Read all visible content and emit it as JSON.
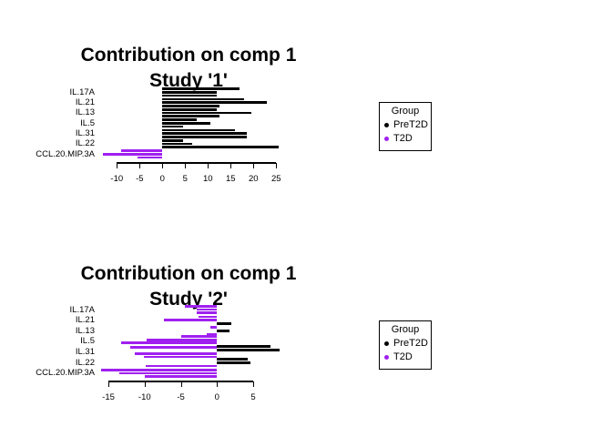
{
  "page": {
    "background": "#ffffff"
  },
  "colors": {
    "PreT2D": "#000000",
    "T2D": "#A020F0"
  },
  "legend": {
    "title": "Group",
    "items": [
      {
        "label": "PreT2D",
        "color": "#000000"
      },
      {
        "label": "T2D",
        "color": "#A020F0"
      }
    ]
  },
  "chart_data": [
    {
      "type": "bar",
      "orientation": "horizontal",
      "title": "Contribution on comp 1",
      "subtitle": "Study '1'",
      "xlabel": "",
      "ylabel": "",
      "grid": false,
      "legend_position": "right",
      "categories": [
        "IL.17A",
        "IL.21",
        "IL.13",
        "IL.5",
        "IL.31",
        "IL.22",
        "CCL.20.MIP.3A"
      ],
      "xticks": [
        -10,
        -5,
        0,
        5,
        10,
        15,
        20,
        25
      ],
      "xlim": [
        -13.5,
        25.8
      ],
      "features": [
        {
          "name": "IL.17A",
          "bars": [
            {
              "group": "PreT2D",
              "value": 17
            },
            {
              "group": "PreT2D",
              "value": 12
            },
            {
              "group": "PreT2D",
              "value": 12
            }
          ]
        },
        {
          "name": "IL.21",
          "bars": [
            {
              "group": "PreT2D",
              "value": 18
            },
            {
              "group": "PreT2D",
              "value": 23
            },
            {
              "group": "PreT2D",
              "value": 12.5
            }
          ]
        },
        {
          "name": "IL.13",
          "bars": [
            {
              "group": "PreT2D",
              "value": 12
            },
            {
              "group": "PreT2D",
              "value": 19.5
            },
            {
              "group": "PreT2D",
              "value": 12.5
            }
          ]
        },
        {
          "name": "IL.5",
          "bars": [
            {
              "group": "PreT2D",
              "value": 7.5
            },
            {
              "group": "PreT2D",
              "value": 10.5
            },
            {
              "group": "PreT2D",
              "value": 4.5
            }
          ]
        },
        {
          "name": "IL.31",
          "bars": [
            {
              "group": "PreT2D",
              "value": 16
            },
            {
              "group": "PreT2D",
              "value": 18.5
            },
            {
              "group": "PreT2D",
              "value": 18.5
            }
          ]
        },
        {
          "name": "IL.22",
          "bars": [
            {
              "group": "PreT2D",
              "value": 4.5
            },
            {
              "group": "PreT2D",
              "value": 6.5
            },
            {
              "group": "PreT2D",
              "value": 25.5
            }
          ]
        },
        {
          "name": "CCL.20.MIP.3A",
          "bars": [
            {
              "group": "T2D",
              "value": -9
            },
            {
              "group": "T2D",
              "value": -13
            },
            {
              "group": "T2D",
              "value": -5.5
            }
          ]
        }
      ]
    },
    {
      "type": "bar",
      "orientation": "horizontal",
      "title": "Contribution on comp 1",
      "subtitle": "Study '2'",
      "xlabel": "",
      "ylabel": "",
      "grid": false,
      "legend_position": "right",
      "categories": [
        "IL.17A",
        "IL.21",
        "IL.13",
        "IL.5",
        "IL.31",
        "IL.22",
        "CCL.20.MIP.3A"
      ],
      "xticks": [
        -15,
        -10,
        -5,
        0,
        5
      ],
      "xlim": [
        -16.5,
        9
      ],
      "features": [
        {
          "name": "IL.17A",
          "bars": [
            {
              "group": "T2D",
              "value": -4.5
            },
            {
              "group": "T2D",
              "value": -2.8
            },
            {
              "group": "T2D",
              "value": -2.8
            }
          ]
        },
        {
          "name": "IL.21",
          "bars": [
            {
              "group": "T2D",
              "value": -2.6
            },
            {
              "group": "T2D",
              "value": -7.3
            },
            {
              "group": "PreT2D",
              "value": 2
            }
          ]
        },
        {
          "name": "IL.13",
          "bars": [
            {
              "group": "T2D",
              "value": -0.9
            },
            {
              "group": "PreT2D",
              "value": 1.7
            },
            {
              "group": "T2D",
              "value": -1.4
            }
          ]
        },
        {
          "name": "IL.5",
          "bars": [
            {
              "group": "T2D",
              "value": -5
            },
            {
              "group": "T2D",
              "value": -9.7
            },
            {
              "group": "T2D",
              "value": -13.3
            },
            {
              "group": "PreT2D",
              "value": 7.4
            }
          ]
        },
        {
          "name": "IL.31",
          "bars": [
            {
              "group": "T2D",
              "value": -12
            },
            {
              "group": "PreT2D",
              "value": 8.7
            },
            {
              "group": "T2D",
              "value": -11.4
            },
            {
              "group": "T2D",
              "value": -10.1
            }
          ]
        },
        {
          "name": "IL.22",
          "bars": [
            {
              "group": "PreT2D",
              "value": 4.2
            },
            {
              "group": "PreT2D",
              "value": 4.6
            },
            {
              "group": "T2D",
              "value": -9.9
            }
          ]
        },
        {
          "name": "CCL.20.MIP.3A",
          "bars": [
            {
              "group": "T2D",
              "value": -16
            },
            {
              "group": "T2D",
              "value": -13.5
            },
            {
              "group": "T2D",
              "value": -10
            }
          ]
        }
      ]
    }
  ]
}
